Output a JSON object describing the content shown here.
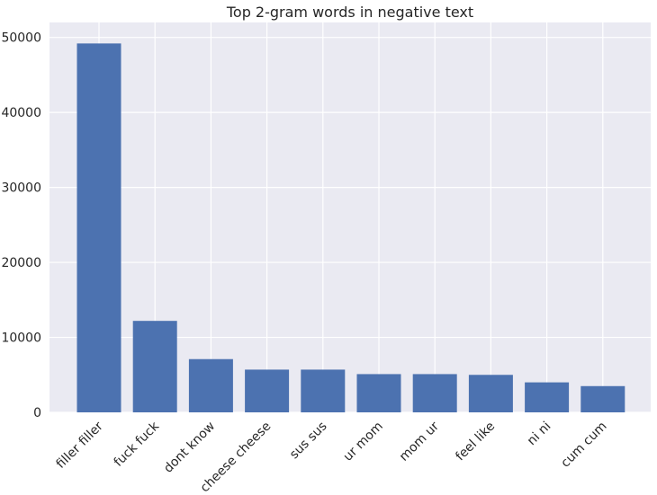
{
  "chart_data": {
    "type": "bar",
    "title": "Top 2-gram words in negative text",
    "xlabel": "",
    "ylabel": "",
    "categories": [
      "filler filler",
      "fuck fuck",
      "dont know",
      "cheese cheese",
      "sus sus",
      "ur mom",
      "mom ur",
      "feel like",
      "ni ni",
      "cum cum"
    ],
    "values": [
      49200,
      12200,
      7100,
      5700,
      5700,
      5100,
      5100,
      5000,
      4000,
      3500
    ],
    "ylim": [
      0,
      52000
    ],
    "yticks": [
      0,
      10000,
      20000,
      30000,
      40000,
      50000
    ],
    "grid": true,
    "legend": "none",
    "colors": {
      "bar": "#4c72b0",
      "plot_background": "#eaeaf2",
      "grid": "#ffffff",
      "text": "#262626"
    }
  }
}
